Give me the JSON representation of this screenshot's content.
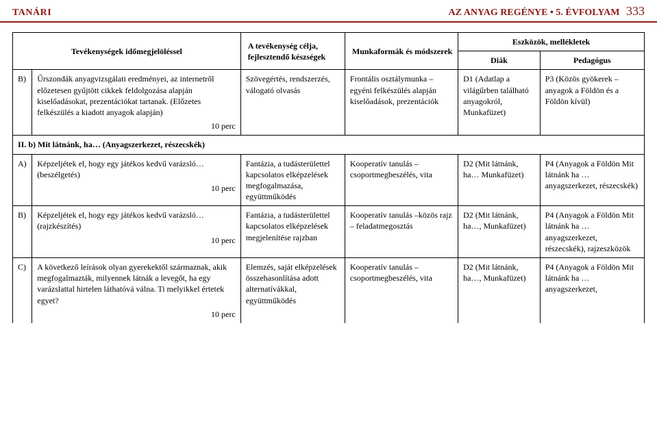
{
  "header": {
    "left": "TANÁRI",
    "right_title": "AZ ANYAG REGÉNYE • 5. ÉVFOLYAM",
    "page_num": "333"
  },
  "table_headers": {
    "activity": "Tevékenységek időmegjelöléssel",
    "goal": "A tevékenység célja, fejlesztendő készségek",
    "forms": "Munkaformák és módszerek",
    "tools": "Eszközök, mellékletek",
    "diak": "Diák",
    "pedagogus": "Pedagógus"
  },
  "rows": [
    {
      "label": "B)",
      "activity_text": "Űrszondák anyagvizsgálati eredményei, az internetről előzetesen gyűjtött cikkek feldolgozása alapján kiselőadásokat, prezentációkat tartanak. (Előzetes felkészülés a kiadott anyagok alapján)",
      "time": "10 perc",
      "goal": "Szövegértés, rendszerzés, válogató olvasás",
      "forms": "Frontális osztálymunka – egyéni felkészülés alapján kiselőadások, prezentációk",
      "diak": "D1 (Adatlap a világűrben található anyagokról, Munkafüzet)",
      "pedagogus": "P3 (Közös gyökerek – anyagok a Földön és a Földön kívül)"
    }
  ],
  "section": {
    "title": "II. b) Mit látnánk, ha… (Anyagszerkezet, részecskék)"
  },
  "rows2": [
    {
      "label": "A)",
      "activity_text": "Képzeljétek el, hogy egy játékos kedvű varázsló… (beszélgetés)",
      "time": "10 perc",
      "goal": "Fantázia, a tudásterülettel kapcsolatos elképzelések megfogalmazása, együttműködés",
      "forms": "Kooperatív tanulás – csoportmegbeszélés, vita",
      "diak": "D2 (Mit látnánk, ha… Munkafüzet)",
      "pedagogus": "P4 (Anyagok a Földön Mit látnánk ha … anyagszerkezet, részecskék)"
    },
    {
      "label": "B)",
      "activity_text": "Képzeljétek el, hogy egy játékos kedvű varázsló… (rajzkészítés)",
      "time": "10 perc",
      "goal": "Fantázia, a tudásterülettel kapcsolatos elképzelések megjelenítése rajzban",
      "forms": "Kooperatív tanulás –közös rajz – feladatmegosztás",
      "diak": "D2 (Mit látnánk, ha…, Munkafüzet)",
      "pedagogus": "P4 (Anyagok a Földön Mit látnánk ha … anyagszerkezet, részecskék), rajzeszközök"
    },
    {
      "label": "C)",
      "activity_text": "A következő leírások olyan gyerekektől származnak, akik megfogalmazták, milyennek látnák a levegőt, ha egy varázslattal hirtelen láthatóvá válna. Ti melyikkel értetek egyet?",
      "time": "10 perc",
      "goal": "Elemzés, saját elképzelések összehasonlítása adott alternatívákkal, együttműködés",
      "forms": "Kooperatív tanulás – csoportmegbeszélés, vita",
      "diak": "D2 (Mit látnánk, ha…, Munkafüzet)",
      "pedagogus": "P4 (Anyagok a Földön Mit látnánk ha … anyagszerkezet,"
    }
  ]
}
